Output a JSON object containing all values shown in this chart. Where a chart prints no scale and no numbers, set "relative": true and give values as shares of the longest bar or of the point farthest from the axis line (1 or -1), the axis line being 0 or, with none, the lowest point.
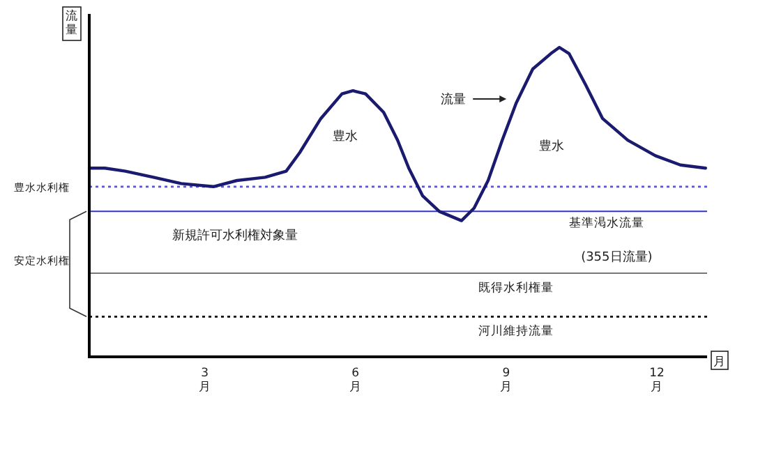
{
  "chart_data": {
    "type": "line",
    "relative": true,
    "ylabel": "流量",
    "xlabel": "月",
    "xlim": [
      0.7,
      13.0
    ],
    "xticks": [
      {
        "value": 3,
        "label": "3月"
      },
      {
        "value": 6,
        "label": "6月"
      },
      {
        "value": 9,
        "label": "9月"
      },
      {
        "value": 12,
        "label": "12月"
      }
    ],
    "series": [
      {
        "color": "#1a1a6e",
        "x": [
          0.7,
          1.01,
          1.42,
          1.98,
          2.53,
          3.17,
          3.64,
          4.2,
          4.62,
          4.89,
          5.31,
          5.73,
          5.95,
          6.2,
          6.56,
          6.84,
          7.06,
          7.34,
          7.67,
          8.11,
          8.36,
          8.64,
          8.92,
          9.2,
          9.53,
          9.89,
          10.06,
          10.25,
          10.58,
          10.92,
          11.42,
          11.97,
          12.47,
          12.97
        ],
        "values": [
          0.61,
          0.61,
          0.6,
          0.58,
          0.56,
          0.55,
          0.57,
          0.58,
          0.6,
          0.66,
          0.77,
          0.85,
          0.86,
          0.85,
          0.79,
          0.7,
          0.61,
          0.52,
          0.47,
          0.44,
          0.48,
          0.57,
          0.7,
          0.82,
          0.93,
          0.98,
          1.0,
          0.98,
          0.88,
          0.77,
          0.7,
          0.65,
          0.62,
          0.61
        ]
      }
    ],
    "ref_lines": [
      {
        "axis": "y",
        "value": 0.55,
        "label": "豊水水利権",
        "color": "#5555dd",
        "line_style": "dotted"
      },
      {
        "axis": "y",
        "value": 0.47,
        "label": "基準渇水流量",
        "color": "#3333cc",
        "line_style": "solid"
      },
      {
        "axis": "y",
        "value": 0.27,
        "label": "既得水利権量",
        "color": "#777777",
        "line_style": "solid"
      },
      {
        "axis": "y",
        "value": 0.13,
        "label": "河川維持流量",
        "color": "#000000",
        "line_style": "dotted"
      }
    ],
    "annotations": [
      "豊水",
      "豊水",
      "流量",
      "新規許可水利権対象量",
      "(355日流量)",
      "安定水利権"
    ],
    "grid": false
  }
}
